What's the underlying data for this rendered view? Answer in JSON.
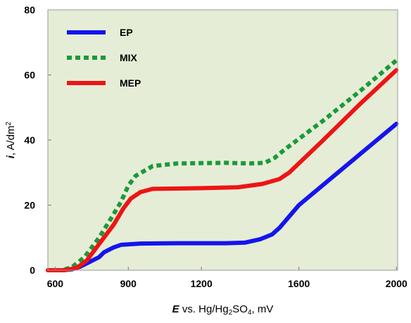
{
  "chart_data": {
    "type": "line",
    "title": "",
    "xlabel_italic": "E",
    "xlabel_rest_1": " vs. Hg/Hg",
    "xlabel_sub_1": "2",
    "xlabel_rest_2": "SO",
    "xlabel_sub_2": "4",
    "xlabel_rest_3": ", mV",
    "ylabel_italic": "i",
    "ylabel_rest": ", A/dm",
    "ylabel_sup": "2",
    "xlim": [
      570,
      2005
    ],
    "ylim": [
      0,
      80
    ],
    "xticks": [
      600,
      900,
      1200,
      1600,
      2000
    ],
    "yticks": [
      0,
      20,
      40,
      60,
      80
    ],
    "grid": false,
    "legend_position": "top-left",
    "colors": {
      "plot_background": "#e6edd6",
      "frame": "#999999"
    },
    "series": [
      {
        "name": "EP",
        "color": "#1414ee",
        "dash": "solid",
        "points": [
          [
            570,
            0
          ],
          [
            630,
            0
          ],
          [
            670,
            0.3
          ],
          [
            700,
            1
          ],
          [
            740,
            2.5
          ],
          [
            780,
            4
          ],
          [
            800,
            5.5
          ],
          [
            840,
            7
          ],
          [
            870,
            7.8
          ],
          [
            950,
            8.2
          ],
          [
            1100,
            8.3
          ],
          [
            1300,
            8.3
          ],
          [
            1380,
            8.5
          ],
          [
            1440,
            9.5
          ],
          [
            1490,
            11
          ],
          [
            1520,
            13
          ],
          [
            1600,
            20
          ],
          [
            1800,
            32.5
          ],
          [
            2000,
            45
          ]
        ]
      },
      {
        "name": "MIX",
        "color": "#1a9a3a",
        "dash": "dotted",
        "points": [
          [
            570,
            0
          ],
          [
            630,
            0
          ],
          [
            670,
            1
          ],
          [
            720,
            4
          ],
          [
            780,
            10
          ],
          [
            830,
            16
          ],
          [
            870,
            21
          ],
          [
            900,
            26
          ],
          [
            930,
            29
          ],
          [
            1000,
            32
          ],
          [
            1100,
            32.8
          ],
          [
            1300,
            33
          ],
          [
            1400,
            32.8
          ],
          [
            1460,
            33
          ],
          [
            1500,
            34.5
          ],
          [
            1540,
            37
          ],
          [
            1700,
            46
          ],
          [
            1850,
            55
          ],
          [
            2000,
            64.5
          ]
        ]
      },
      {
        "name": "MEP",
        "color": "#ee1414",
        "dash": "solid",
        "points": [
          [
            570,
            0
          ],
          [
            640,
            0
          ],
          [
            690,
            0.8
          ],
          [
            730,
            3
          ],
          [
            780,
            8
          ],
          [
            840,
            14
          ],
          [
            880,
            19
          ],
          [
            910,
            22
          ],
          [
            950,
            24
          ],
          [
            1000,
            25
          ],
          [
            1200,
            25.2
          ],
          [
            1350,
            25.5
          ],
          [
            1450,
            26.5
          ],
          [
            1520,
            28
          ],
          [
            1560,
            30
          ],
          [
            1700,
            40
          ],
          [
            1850,
            51
          ],
          [
            2000,
            61.5
          ]
        ]
      }
    ]
  }
}
